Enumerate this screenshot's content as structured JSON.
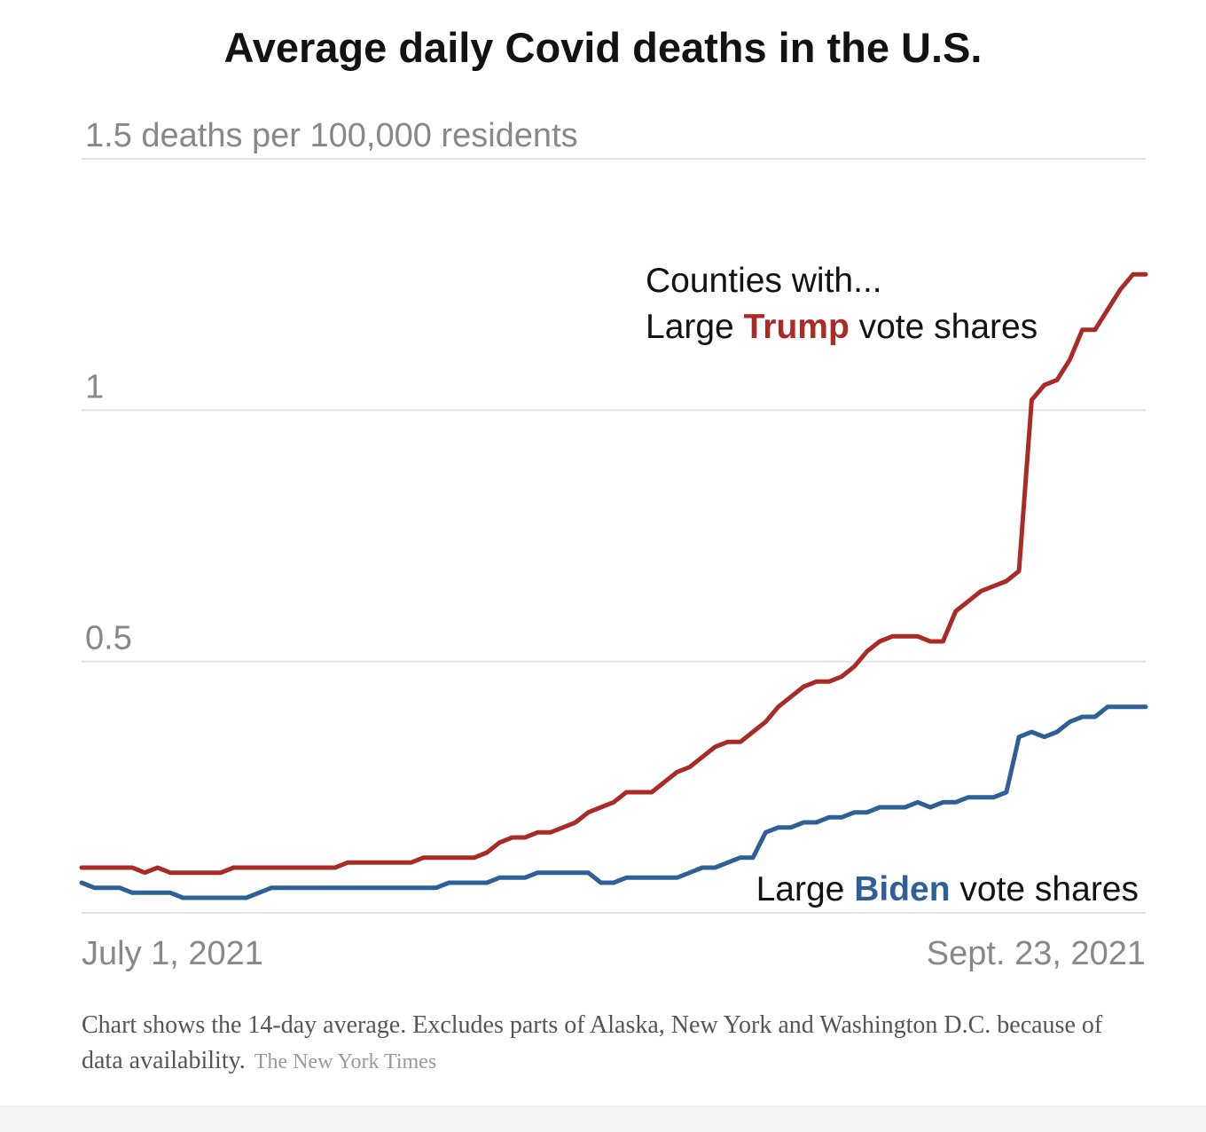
{
  "colors": {
    "trump": "#a92b26",
    "biden": "#2f5f97",
    "grid": "#e2e2e2",
    "axis_text": "#888888",
    "text": "#121212"
  },
  "chart_data": {
    "type": "line",
    "title": "Average daily Covid deaths in the U.S.",
    "ylabel": "deaths per 100,000 residents",
    "ylim": [
      0,
      1.5
    ],
    "y_ticks": [
      {
        "value": 1.5,
        "label": "1.5 deaths per 100,000 residents"
      },
      {
        "value": 1,
        "label": "1"
      },
      {
        "value": 0.5,
        "label": "0.5"
      },
      {
        "value": 0,
        "label": ""
      }
    ],
    "x_range_days": [
      0,
      84
    ],
    "x_ticks": [
      {
        "day": 0,
        "label": "July 1, 2021",
        "anchor": "start"
      },
      {
        "day": 84,
        "label": "Sept. 23, 2021",
        "anchor": "end"
      }
    ],
    "annotation_intro": "Counties with...",
    "series": [
      {
        "name": "Large Trump vote shares",
        "label_pre": "Large ",
        "label_bold": "Trump",
        "label_post": " vote shares",
        "color_key": "trump",
        "points": [
          [
            0,
            0.09
          ],
          [
            4,
            0.09
          ],
          [
            5,
            0.08
          ],
          [
            6,
            0.09
          ],
          [
            7,
            0.08
          ],
          [
            11,
            0.08
          ],
          [
            12,
            0.09
          ],
          [
            20,
            0.09
          ],
          [
            21,
            0.1
          ],
          [
            26,
            0.1
          ],
          [
            27,
            0.11
          ],
          [
            31,
            0.11
          ],
          [
            32,
            0.12
          ],
          [
            33,
            0.14
          ],
          [
            34,
            0.15
          ],
          [
            35,
            0.15
          ],
          [
            36,
            0.16
          ],
          [
            37,
            0.16
          ],
          [
            38,
            0.17
          ],
          [
            39,
            0.18
          ],
          [
            40,
            0.2
          ],
          [
            41,
            0.21
          ],
          [
            42,
            0.22
          ],
          [
            43,
            0.24
          ],
          [
            44,
            0.24
          ],
          [
            45,
            0.24
          ],
          [
            46,
            0.26
          ],
          [
            47,
            0.28
          ],
          [
            48,
            0.29
          ],
          [
            49,
            0.31
          ],
          [
            50,
            0.33
          ],
          [
            51,
            0.34
          ],
          [
            52,
            0.34
          ],
          [
            53,
            0.36
          ],
          [
            54,
            0.38
          ],
          [
            55,
            0.41
          ],
          [
            56,
            0.43
          ],
          [
            57,
            0.45
          ],
          [
            58,
            0.46
          ],
          [
            59,
            0.46
          ],
          [
            60,
            0.47
          ],
          [
            61,
            0.49
          ],
          [
            62,
            0.52
          ],
          [
            63,
            0.54
          ],
          [
            64,
            0.55
          ],
          [
            65,
            0.55
          ],
          [
            66,
            0.55
          ],
          [
            67,
            0.54
          ],
          [
            68,
            0.54
          ],
          [
            69,
            0.6
          ],
          [
            70,
            0.62
          ],
          [
            71,
            0.64
          ],
          [
            72,
            0.65
          ],
          [
            73,
            0.66
          ],
          [
            74,
            0.68
          ],
          [
            75,
            1.02
          ],
          [
            76,
            1.05
          ],
          [
            77,
            1.06
          ],
          [
            78,
            1.1
          ],
          [
            79,
            1.16
          ],
          [
            80,
            1.16
          ],
          [
            81,
            1.2
          ],
          [
            82,
            1.24
          ],
          [
            83,
            1.27
          ],
          [
            84,
            1.27
          ]
        ]
      },
      {
        "name": "Large Biden vote shares",
        "label_pre": "Large ",
        "label_bold": "Biden",
        "label_post": " vote shares",
        "color_key": "biden",
        "points": [
          [
            0,
            0.06
          ],
          [
            1,
            0.05
          ],
          [
            3,
            0.05
          ],
          [
            4,
            0.04
          ],
          [
            7,
            0.04
          ],
          [
            8,
            0.03
          ],
          [
            13,
            0.03
          ],
          [
            14,
            0.04
          ],
          [
            15,
            0.05
          ],
          [
            28,
            0.05
          ],
          [
            29,
            0.06
          ],
          [
            32,
            0.06
          ],
          [
            33,
            0.07
          ],
          [
            35,
            0.07
          ],
          [
            36,
            0.08
          ],
          [
            40,
            0.08
          ],
          [
            41,
            0.06
          ],
          [
            42,
            0.06
          ],
          [
            43,
            0.07
          ],
          [
            47,
            0.07
          ],
          [
            48,
            0.08
          ],
          [
            49,
            0.09
          ],
          [
            50,
            0.09
          ],
          [
            51,
            0.1
          ],
          [
            52,
            0.11
          ],
          [
            53,
            0.11
          ],
          [
            54,
            0.16
          ],
          [
            55,
            0.17
          ],
          [
            56,
            0.17
          ],
          [
            57,
            0.18
          ],
          [
            58,
            0.18
          ],
          [
            59,
            0.19
          ],
          [
            60,
            0.19
          ],
          [
            61,
            0.2
          ],
          [
            62,
            0.2
          ],
          [
            63,
            0.21
          ],
          [
            64,
            0.21
          ],
          [
            65,
            0.21
          ],
          [
            66,
            0.22
          ],
          [
            67,
            0.21
          ],
          [
            68,
            0.22
          ],
          [
            69,
            0.22
          ],
          [
            70,
            0.23
          ],
          [
            71,
            0.23
          ],
          [
            72,
            0.23
          ],
          [
            73,
            0.24
          ],
          [
            74,
            0.35
          ],
          [
            75,
            0.36
          ],
          [
            76,
            0.35
          ],
          [
            77,
            0.36
          ],
          [
            78,
            0.38
          ],
          [
            79,
            0.39
          ],
          [
            80,
            0.39
          ],
          [
            81,
            0.41
          ],
          [
            82,
            0.41
          ],
          [
            83,
            0.41
          ],
          [
            84,
            0.41
          ]
        ]
      }
    ]
  },
  "footnote": {
    "text": "Chart shows the 14-day average. Excludes parts of Alaska, New York and Washington D.C. because of data availability.",
    "source": "The New York Times"
  }
}
